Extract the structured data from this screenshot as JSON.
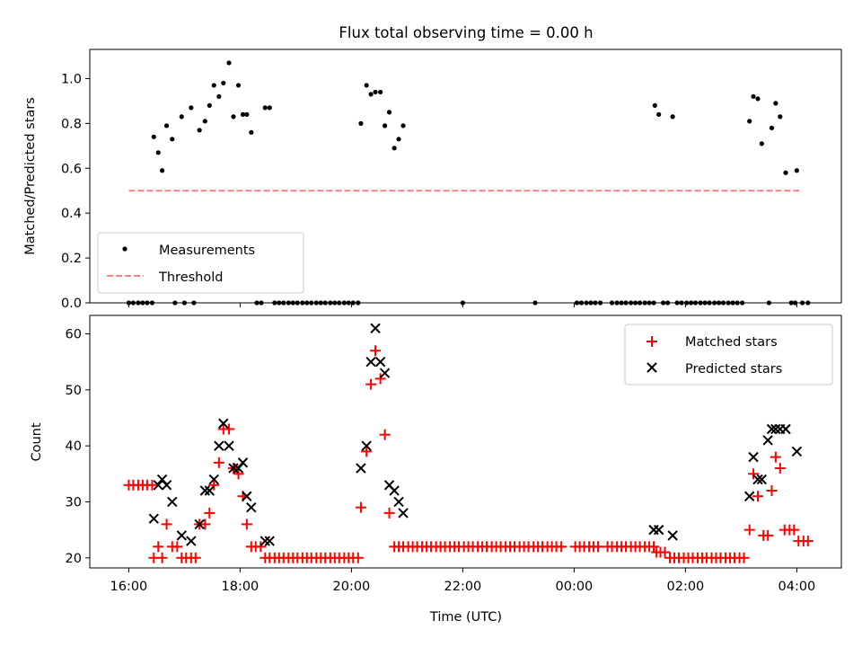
{
  "chart_data": [
    {
      "type": "scatter",
      "title": "Flux total observing time = 0.00 h",
      "ylabel": "Matched/Predicted stars",
      "xlim_hours": [
        15.3,
        28.8
      ],
      "ylim": [
        0,
        1.13
      ],
      "yticks": [
        0.0,
        0.2,
        0.4,
        0.6,
        0.8,
        1.0
      ],
      "ytick_labels": [
        "0.0",
        "0.2",
        "0.4",
        "0.6",
        "0.8",
        "1.0"
      ],
      "legend": {
        "placement": "lower-left",
        "measurements": "Measurements",
        "threshold": "Threshold"
      },
      "threshold": {
        "value": 0.5,
        "x_start": 16.0,
        "x_end": 28.1,
        "color": "#ff7f7f"
      },
      "measurement_color": "#000000",
      "measurements": [
        [
          16.0,
          0
        ],
        [
          16.08,
          0
        ],
        [
          16.17,
          0
        ],
        [
          16.25,
          0
        ],
        [
          16.33,
          0
        ],
        [
          16.42,
          0
        ],
        [
          16.45,
          0.74
        ],
        [
          16.53,
          0.67
        ],
        [
          16.6,
          0.59
        ],
        [
          16.68,
          0.79
        ],
        [
          16.78,
          0.73
        ],
        [
          16.83,
          0
        ],
        [
          16.95,
          0.83
        ],
        [
          17.0,
          0
        ],
        [
          17.12,
          0.87
        ],
        [
          17.17,
          0
        ],
        [
          17.27,
          0.77
        ],
        [
          17.37,
          0.81
        ],
        [
          17.45,
          0.88
        ],
        [
          17.53,
          0.97
        ],
        [
          17.62,
          0.92
        ],
        [
          17.7,
          0.98
        ],
        [
          17.8,
          1.07
        ],
        [
          17.88,
          0.83
        ],
        [
          17.97,
          0.97
        ],
        [
          18.05,
          0.84
        ],
        [
          18.12,
          0.84
        ],
        [
          18.2,
          0.76
        ],
        [
          18.3,
          0
        ],
        [
          18.38,
          0
        ],
        [
          18.45,
          0.87
        ],
        [
          18.53,
          0.87
        ],
        [
          18.62,
          0
        ],
        [
          18.7,
          0
        ],
        [
          18.78,
          0
        ],
        [
          18.87,
          0
        ],
        [
          18.95,
          0
        ],
        [
          19.03,
          0
        ],
        [
          19.12,
          0
        ],
        [
          19.2,
          0
        ],
        [
          19.28,
          0
        ],
        [
          19.37,
          0
        ],
        [
          19.45,
          0
        ],
        [
          19.53,
          0
        ],
        [
          19.62,
          0
        ],
        [
          19.7,
          0
        ],
        [
          19.78,
          0
        ],
        [
          19.87,
          0
        ],
        [
          19.95,
          0
        ],
        [
          20.03,
          0
        ],
        [
          20.12,
          0
        ],
        [
          20.17,
          0.8
        ],
        [
          20.27,
          0.97
        ],
        [
          20.35,
          0.93
        ],
        [
          20.43,
          0.94
        ],
        [
          20.52,
          0.94
        ],
        [
          20.6,
          0.79
        ],
        [
          20.68,
          0.85
        ],
        [
          20.77,
          0.69
        ],
        [
          20.85,
          0.73
        ],
        [
          20.93,
          0.79
        ],
        [
          22.0,
          0
        ],
        [
          23.3,
          0
        ],
        [
          24.05,
          0
        ],
        [
          24.13,
          0
        ],
        [
          24.22,
          0
        ],
        [
          24.3,
          0
        ],
        [
          24.38,
          0
        ],
        [
          24.47,
          0
        ],
        [
          24.68,
          0
        ],
        [
          24.77,
          0
        ],
        [
          24.85,
          0
        ],
        [
          24.93,
          0
        ],
        [
          25.02,
          0
        ],
        [
          25.1,
          0
        ],
        [
          25.18,
          0
        ],
        [
          25.27,
          0
        ],
        [
          25.35,
          0
        ],
        [
          25.43,
          0
        ],
        [
          25.45,
          0.88
        ],
        [
          25.52,
          0.84
        ],
        [
          25.6,
          0
        ],
        [
          25.68,
          0
        ],
        [
          25.77,
          0.83
        ],
        [
          25.85,
          0
        ],
        [
          25.93,
          0
        ],
        [
          26.02,
          0
        ],
        [
          26.1,
          0
        ],
        [
          26.18,
          0
        ],
        [
          26.27,
          0
        ],
        [
          26.35,
          0
        ],
        [
          26.43,
          0
        ],
        [
          26.52,
          0
        ],
        [
          26.6,
          0
        ],
        [
          26.68,
          0
        ],
        [
          26.77,
          0
        ],
        [
          26.85,
          0
        ],
        [
          26.93,
          0
        ],
        [
          27.02,
          0
        ],
        [
          27.15,
          0.81
        ],
        [
          27.22,
          0.92
        ],
        [
          27.3,
          0.91
        ],
        [
          27.37,
          0.71
        ],
        [
          27.5,
          0
        ],
        [
          27.55,
          0.78
        ],
        [
          27.62,
          0.89
        ],
        [
          27.7,
          0.83
        ],
        [
          27.8,
          0.58
        ],
        [
          27.9,
          0
        ],
        [
          27.97,
          0
        ],
        [
          28.0,
          0.59
        ],
        [
          28.1,
          0
        ],
        [
          28.2,
          0
        ]
      ]
    },
    {
      "type": "scatter",
      "xlabel": "Time (UTC)",
      "ylabel": "Count",
      "xlim_hours": [
        15.3,
        28.8
      ],
      "ylim": [
        18.2,
        63.3
      ],
      "yticks": [
        20,
        30,
        40,
        50,
        60
      ],
      "ytick_labels": [
        "20",
        "30",
        "40",
        "50",
        "60"
      ],
      "xticks_hours": [
        16,
        18,
        20,
        22,
        24,
        26,
        28
      ],
      "xtick_labels": [
        "16:00",
        "18:00",
        "20:00",
        "22:00",
        "00:00",
        "02:00",
        "04:00"
      ],
      "legend": {
        "placement": "upper-right",
        "matched": "Matched stars",
        "predicted": "Predicted stars"
      },
      "matched_color": "#ff0000",
      "predicted_color": "#000000",
      "matched": [
        [
          16.0,
          33
        ],
        [
          16.08,
          33
        ],
        [
          16.17,
          33
        ],
        [
          16.25,
          33
        ],
        [
          16.33,
          33
        ],
        [
          16.42,
          33
        ],
        [
          16.45,
          20
        ],
        [
          16.53,
          22
        ],
        [
          16.6,
          20
        ],
        [
          16.68,
          26
        ],
        [
          16.78,
          22
        ],
        [
          16.87,
          22
        ],
        [
          16.95,
          20
        ],
        [
          17.03,
          20
        ],
        [
          17.12,
          20
        ],
        [
          17.2,
          20
        ],
        [
          17.27,
          26
        ],
        [
          17.37,
          26
        ],
        [
          17.45,
          28
        ],
        [
          17.53,
          33
        ],
        [
          17.62,
          37
        ],
        [
          17.7,
          43
        ],
        [
          17.8,
          43
        ],
        [
          17.88,
          36
        ],
        [
          17.97,
          35
        ],
        [
          18.05,
          31
        ],
        [
          18.12,
          26
        ],
        [
          18.2,
          22
        ],
        [
          18.28,
          22
        ],
        [
          18.37,
          22
        ],
        [
          18.45,
          20
        ],
        [
          18.53,
          20
        ],
        [
          18.62,
          20
        ],
        [
          18.7,
          20
        ],
        [
          18.78,
          20
        ],
        [
          18.87,
          20
        ],
        [
          18.95,
          20
        ],
        [
          19.03,
          20
        ],
        [
          19.12,
          20
        ],
        [
          19.2,
          20
        ],
        [
          19.28,
          20
        ],
        [
          19.37,
          20
        ],
        [
          19.45,
          20
        ],
        [
          19.53,
          20
        ],
        [
          19.62,
          20
        ],
        [
          19.7,
          20
        ],
        [
          19.78,
          20
        ],
        [
          19.87,
          20
        ],
        [
          19.95,
          20
        ],
        [
          20.03,
          20
        ],
        [
          20.12,
          20
        ],
        [
          20.17,
          29
        ],
        [
          20.27,
          39
        ],
        [
          20.35,
          51
        ],
        [
          20.43,
          57
        ],
        [
          20.52,
          52
        ],
        [
          20.6,
          42
        ],
        [
          20.68,
          28
        ],
        [
          20.77,
          22
        ],
        [
          20.85,
          22
        ],
        [
          20.93,
          22
        ],
        [
          21.02,
          22
        ],
        [
          21.1,
          22
        ],
        [
          21.18,
          22
        ],
        [
          21.27,
          22
        ],
        [
          21.35,
          22
        ],
        [
          21.43,
          22
        ],
        [
          21.52,
          22
        ],
        [
          21.6,
          22
        ],
        [
          21.68,
          22
        ],
        [
          21.77,
          22
        ],
        [
          21.85,
          22
        ],
        [
          21.93,
          22
        ],
        [
          22.02,
          22
        ],
        [
          22.1,
          22
        ],
        [
          22.18,
          22
        ],
        [
          22.27,
          22
        ],
        [
          22.35,
          22
        ],
        [
          22.43,
          22
        ],
        [
          22.52,
          22
        ],
        [
          22.6,
          22
        ],
        [
          22.68,
          22
        ],
        [
          22.77,
          22
        ],
        [
          22.85,
          22
        ],
        [
          22.93,
          22
        ],
        [
          23.02,
          22
        ],
        [
          23.1,
          22
        ],
        [
          23.18,
          22
        ],
        [
          23.27,
          22
        ],
        [
          23.35,
          22
        ],
        [
          23.43,
          22
        ],
        [
          23.52,
          22
        ],
        [
          23.6,
          22
        ],
        [
          23.68,
          22
        ],
        [
          23.77,
          22
        ],
        [
          24.02,
          22
        ],
        [
          24.1,
          22
        ],
        [
          24.18,
          22
        ],
        [
          24.27,
          22
        ],
        [
          24.35,
          22
        ],
        [
          24.43,
          22
        ],
        [
          24.6,
          22
        ],
        [
          24.68,
          22
        ],
        [
          24.77,
          22
        ],
        [
          24.85,
          22
        ],
        [
          24.93,
          22
        ],
        [
          25.02,
          22
        ],
        [
          25.1,
          22
        ],
        [
          25.18,
          22
        ],
        [
          25.27,
          22
        ],
        [
          25.35,
          22
        ],
        [
          25.43,
          22
        ],
        [
          25.48,
          21
        ],
        [
          25.55,
          21
        ],
        [
          25.63,
          21
        ],
        [
          25.72,
          20
        ],
        [
          25.8,
          20
        ],
        [
          25.88,
          20
        ],
        [
          25.97,
          20
        ],
        [
          26.05,
          20
        ],
        [
          26.13,
          20
        ],
        [
          26.22,
          20
        ],
        [
          26.3,
          20
        ],
        [
          26.38,
          20
        ],
        [
          26.47,
          20
        ],
        [
          26.55,
          20
        ],
        [
          26.63,
          20
        ],
        [
          26.72,
          20
        ],
        [
          26.8,
          20
        ],
        [
          26.88,
          20
        ],
        [
          26.97,
          20
        ],
        [
          27.05,
          20
        ],
        [
          27.15,
          25
        ],
        [
          27.22,
          35
        ],
        [
          27.3,
          31
        ],
        [
          27.4,
          24
        ],
        [
          27.48,
          24
        ],
        [
          27.55,
          32
        ],
        [
          27.62,
          38
        ],
        [
          27.7,
          36
        ],
        [
          27.78,
          25
        ],
        [
          27.87,
          25
        ],
        [
          27.95,
          25
        ],
        [
          28.03,
          23
        ],
        [
          28.12,
          23
        ],
        [
          28.2,
          23
        ]
      ],
      "predicted": [
        [
          16.45,
          27
        ],
        [
          16.53,
          33
        ],
        [
          16.6,
          34
        ],
        [
          16.68,
          33
        ],
        [
          16.78,
          30
        ],
        [
          16.95,
          24
        ],
        [
          17.12,
          23
        ],
        [
          17.27,
          26
        ],
        [
          17.37,
          32
        ],
        [
          17.45,
          32
        ],
        [
          17.53,
          34
        ],
        [
          17.62,
          40
        ],
        [
          17.7,
          44
        ],
        [
          17.8,
          40
        ],
        [
          17.88,
          36
        ],
        [
          17.97,
          36
        ],
        [
          18.05,
          37
        ],
        [
          18.12,
          31
        ],
        [
          18.2,
          29
        ],
        [
          18.45,
          23
        ],
        [
          18.53,
          23
        ],
        [
          20.17,
          36
        ],
        [
          20.27,
          40
        ],
        [
          20.35,
          55
        ],
        [
          20.43,
          61
        ],
        [
          20.52,
          55
        ],
        [
          20.6,
          53
        ],
        [
          20.68,
          33
        ],
        [
          20.77,
          32
        ],
        [
          20.85,
          30
        ],
        [
          20.93,
          28
        ],
        [
          25.43,
          25
        ],
        [
          25.52,
          25
        ],
        [
          25.77,
          24
        ],
        [
          27.15,
          31
        ],
        [
          27.22,
          38
        ],
        [
          27.3,
          34
        ],
        [
          27.37,
          34
        ],
        [
          27.48,
          41
        ],
        [
          27.55,
          43
        ],
        [
          27.62,
          43
        ],
        [
          27.7,
          43
        ],
        [
          27.8,
          43
        ],
        [
          28.0,
          39
        ]
      ]
    }
  ]
}
